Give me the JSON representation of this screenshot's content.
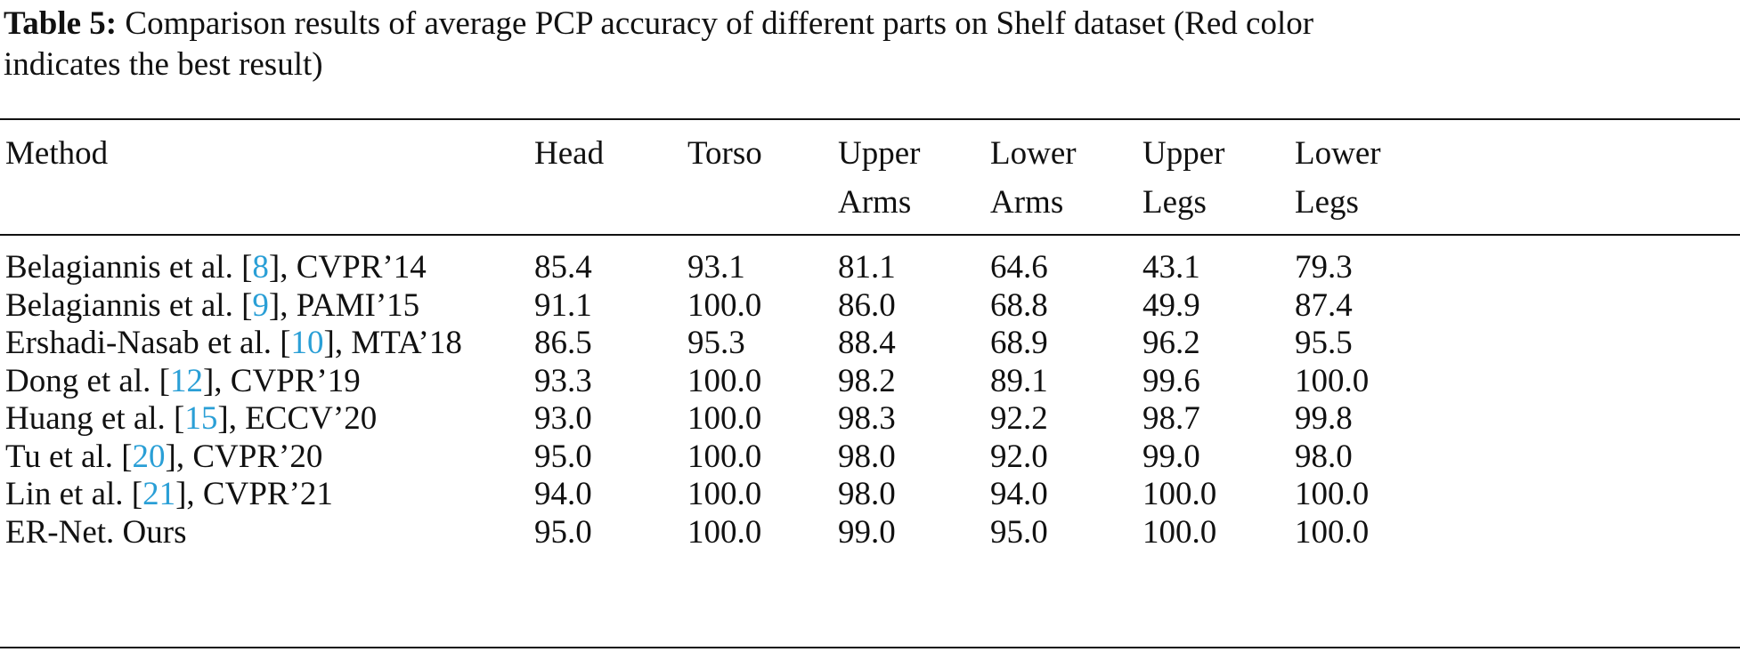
{
  "caption": {
    "label": "Table 5:",
    "line1": " Comparison results of average PCP accuracy of different parts on Shelf dataset (Red color",
    "line2": "indicates the best result)"
  },
  "header": {
    "method": "Method",
    "head": "Head",
    "torso": "Torso",
    "upper_arms_1": "Upper",
    "upper_arms_2": "Arms",
    "lower_arms_1": "Lower",
    "lower_arms_2": "Arms",
    "upper_legs_1": "Upper",
    "upper_legs_2": "Legs",
    "lower_legs_1": "Lower",
    "lower_legs_2": "Legs"
  },
  "rows": [
    {
      "pre": "Belagiannis et al. [",
      "ref": "8",
      "post": "], CVPR’14",
      "values": [
        "85.4",
        "93.1",
        "81.1",
        "64.6",
        "43.1",
        "79.3"
      ]
    },
    {
      "pre": "Belagiannis et al. [",
      "ref": "9",
      "post": "], PAMI’15",
      "values": [
        "91.1",
        "100.0",
        "86.0",
        "68.8",
        "49.9",
        "87.4"
      ]
    },
    {
      "pre": "Ershadi-Nasab et al. [",
      "ref": "10",
      "post": "], MTA’18",
      "values": [
        "86.5",
        "95.3",
        "88.4",
        "68.9",
        "96.2",
        "95.5"
      ]
    },
    {
      "pre": "Dong et al. [",
      "ref": "12",
      "post": "], CVPR’19",
      "values": [
        "93.3",
        "100.0",
        "98.2",
        "89.1",
        "99.6",
        "100.0"
      ]
    },
    {
      "pre": "Huang et al. [",
      "ref": "15",
      "post": "], ECCV’20",
      "values": [
        "93.0",
        "100.0",
        "98.3",
        "92.2",
        "98.7",
        "99.8"
      ]
    },
    {
      "pre": "Tu et al. [",
      "ref": "20",
      "post": "], CVPR’20",
      "values": [
        "95.0",
        "100.0",
        "98.0",
        "92.0",
        "99.0",
        "98.0"
      ]
    },
    {
      "pre": "Lin et al. [",
      "ref": "21",
      "post": "], CVPR’21",
      "values": [
        "94.0",
        "100.0",
        "98.0",
        "94.0",
        "100.0",
        "100.0"
      ]
    },
    {
      "pre": "ER-Net. Ours",
      "ref": "",
      "post": "",
      "values": [
        "95.0",
        "100.0",
        "99.0",
        "95.0",
        "100.0",
        "100.0"
      ]
    }
  ]
}
